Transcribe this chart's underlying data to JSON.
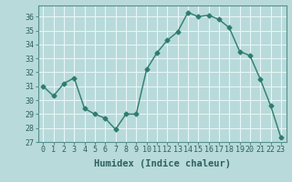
{
  "x": [
    0,
    1,
    2,
    3,
    4,
    5,
    6,
    7,
    8,
    9,
    10,
    11,
    12,
    13,
    14,
    15,
    16,
    17,
    18,
    19,
    20,
    21,
    22,
    23
  ],
  "y": [
    31,
    30.3,
    31.2,
    31.6,
    29.4,
    29.0,
    28.7,
    27.9,
    29.0,
    29.0,
    32.2,
    33.4,
    34.3,
    34.9,
    36.3,
    36.0,
    36.1,
    35.8,
    35.2,
    33.5,
    33.2,
    31.5,
    29.6,
    27.3
  ],
  "line_color": "#2e7d6e",
  "marker": "D",
  "marker_size": 2.5,
  "bg_color": "#b8dada",
  "grid_color": "#e8f5f5",
  "xlabel": "Humidex (Indice chaleur)",
  "ylim": [
    27,
    36.8
  ],
  "xlim": [
    -0.5,
    23.5
  ],
  "yticks": [
    27,
    28,
    29,
    30,
    31,
    32,
    33,
    34,
    35,
    36
  ],
  "xticks": [
    0,
    1,
    2,
    3,
    4,
    5,
    6,
    7,
    8,
    9,
    10,
    11,
    12,
    13,
    14,
    15,
    16,
    17,
    18,
    19,
    20,
    21,
    22,
    23
  ],
  "xlabel_fontsize": 7.5,
  "tick_fontsize": 6.0,
  "line_width": 1.0
}
